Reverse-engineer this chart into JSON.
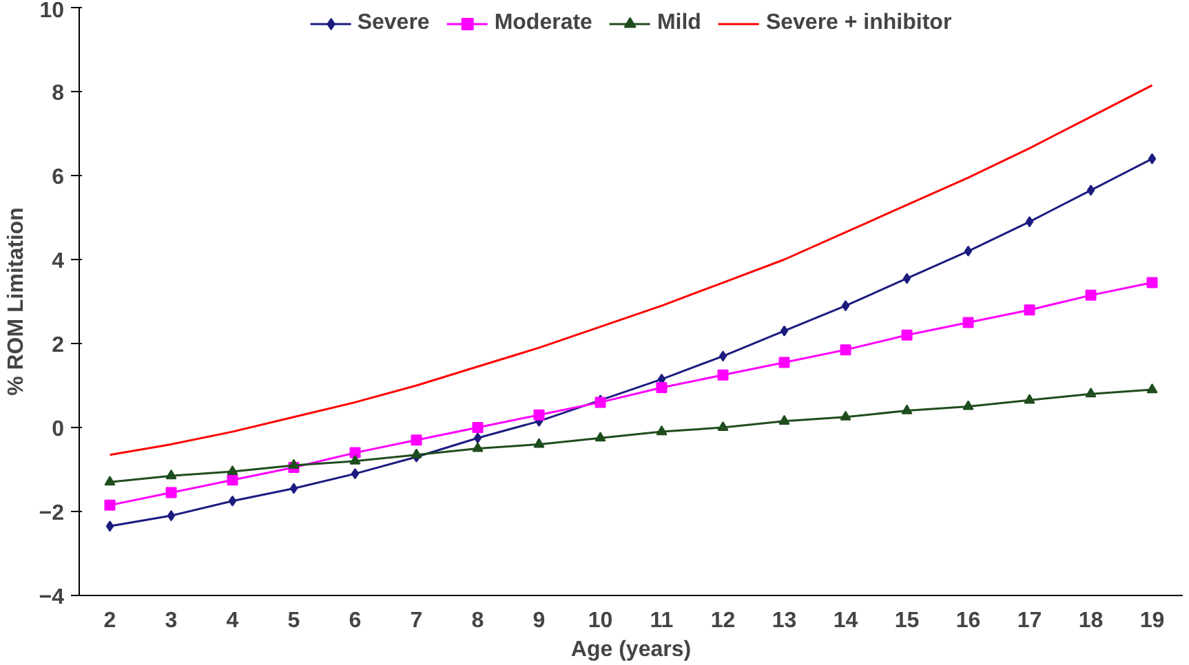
{
  "chart_data": {
    "type": "line",
    "xlabel": "Age (years)",
    "ylabel": "% ROM Limitation",
    "categories": [
      "2",
      "3",
      "4",
      "5",
      "6",
      "7",
      "8",
      "9",
      "10",
      "11",
      "12",
      "13",
      "14",
      "15",
      "16",
      "17",
      "18",
      "19"
    ],
    "ylim": [
      -4,
      10
    ],
    "yticks": [
      -4,
      -2,
      0,
      2,
      4,
      6,
      8,
      10
    ],
    "grid": false,
    "legend": "top",
    "series": [
      {
        "name": "Severe",
        "color": "#1c1c80",
        "marker": "diamond",
        "values": [
          -2.35,
          -2.1,
          -1.75,
          -1.45,
          -1.1,
          -0.7,
          -0.25,
          0.15,
          0.65,
          1.15,
          1.7,
          2.3,
          2.9,
          3.55,
          4.2,
          4.9,
          5.65,
          6.4
        ]
      },
      {
        "name": "Moderate",
        "color": "#ff00ff",
        "marker": "square",
        "values": [
          -1.85,
          -1.55,
          -1.25,
          -0.95,
          -0.6,
          -0.3,
          0.0,
          0.3,
          0.6,
          0.95,
          1.25,
          1.55,
          1.85,
          2.2,
          2.5,
          2.8,
          3.15,
          3.45
        ]
      },
      {
        "name": "Mild",
        "color": "#1e4d1e",
        "marker": "triangle",
        "values": [
          -1.3,
          -1.15,
          -1.05,
          -0.9,
          -0.8,
          -0.65,
          -0.5,
          -0.4,
          -0.25,
          -0.1,
          0.0,
          0.15,
          0.25,
          0.4,
          0.5,
          0.65,
          0.8,
          0.9
        ]
      },
      {
        "name": "Severe + inhibitor",
        "color": "#ff0000",
        "marker": "none",
        "values": [
          -0.65,
          -0.4,
          -0.1,
          0.25,
          0.6,
          1.0,
          1.45,
          1.9,
          2.4,
          2.9,
          3.45,
          4.0,
          4.65,
          5.3,
          5.95,
          6.65,
          7.4,
          8.15
        ]
      }
    ]
  }
}
